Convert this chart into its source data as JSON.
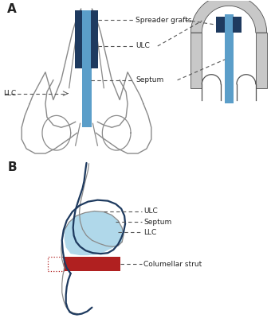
{
  "background_color": "#ffffff",
  "label_A": "A",
  "label_B": "B",
  "dark_blue": "#1e3a5f",
  "mid_blue": "#5b9ec9",
  "light_blue_fill": "#a8d4e8",
  "dark_red": "#b02020",
  "gray_line": "#8a8a8a",
  "light_gray_fill": "#c8c8c8",
  "dark_gray_line": "#505050",
  "dashed_color": "#555555",
  "text_color": "#222222",
  "annotations_A": [
    "Spreader grafts",
    "ULC",
    "Septum",
    "LLC"
  ],
  "annotations_B": [
    "ULC",
    "Septum",
    "LLC",
    "Columellar strut"
  ]
}
